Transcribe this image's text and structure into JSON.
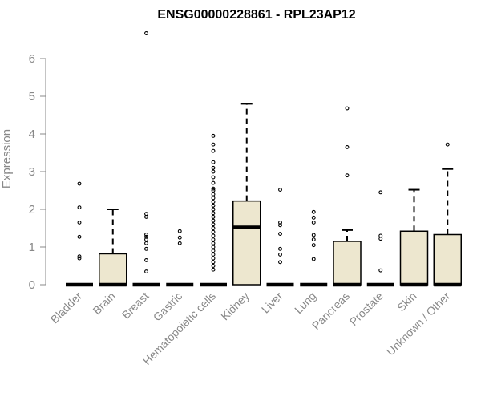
{
  "chart_data": {
    "type": "boxplot",
    "title": "ENSG00000228861 - RPL23AP12",
    "xlabel": "",
    "ylabel": "Expression",
    "ylim": [
      0,
      6.8
    ],
    "yticks": [
      0,
      1,
      2,
      3,
      4,
      5,
      6
    ],
    "grid": false,
    "legend": "none",
    "colors": {
      "box_fill": "#ede7cf",
      "box_stroke": "#000000",
      "axis": "#888888",
      "title": "#000000"
    },
    "categories": [
      "Bladder",
      "Brain",
      "Breast",
      "Gastric",
      "Hematopoietic cells",
      "Kidney",
      "Liver",
      "Lung",
      "Pancreas",
      "Prostate",
      "Skin",
      "Unknown / Other"
    ],
    "boxes": [
      {
        "q1": 0,
        "median": 0,
        "q3": 0,
        "whisker_low": 0,
        "whisker_high": 0,
        "outliers": [
          0.7,
          0.75,
          1.27,
          1.65,
          2.05,
          2.68
        ]
      },
      {
        "q1": 0,
        "median": 0,
        "q3": 0.82,
        "whisker_low": 0,
        "whisker_high": 2.0,
        "outliers": []
      },
      {
        "q1": 0,
        "median": 0,
        "q3": 0,
        "whisker_low": 0,
        "whisker_high": 0,
        "outliers": [
          0.35,
          0.65,
          0.95,
          1.1,
          1.2,
          1.27,
          1.33,
          1.8,
          1.88,
          6.67
        ]
      },
      {
        "q1": 0,
        "median": 0,
        "q3": 0,
        "whisker_low": 0,
        "whisker_high": 0,
        "outliers": [
          1.1,
          1.25,
          1.42
        ]
      },
      {
        "q1": 0,
        "median": 0,
        "q3": 0,
        "whisker_low": 0,
        "whisker_high": 0,
        "outliers": [
          0.4,
          0.5,
          0.6,
          0.7,
          0.8,
          0.9,
          1.0,
          1.1,
          1.2,
          1.3,
          1.4,
          1.5,
          1.6,
          1.7,
          1.8,
          1.9,
          2.0,
          2.1,
          2.2,
          2.3,
          2.4,
          2.5,
          2.55,
          2.7,
          2.85,
          3.0,
          3.1,
          3.25,
          3.55,
          3.72,
          3.95
        ]
      },
      {
        "q1": 0,
        "median": 1.52,
        "q3": 2.22,
        "whisker_low": 0,
        "whisker_high": 4.8,
        "outliers": []
      },
      {
        "q1": 0,
        "median": 0,
        "q3": 0,
        "whisker_low": 0,
        "whisker_high": 0,
        "outliers": [
          0.6,
          0.8,
          0.95,
          1.35,
          1.58,
          1.65,
          2.52
        ]
      },
      {
        "q1": 0,
        "median": 0,
        "q3": 0,
        "whisker_low": 0,
        "whisker_high": 0,
        "outliers": [
          0.68,
          1.05,
          1.2,
          1.32,
          1.65,
          1.78,
          1.93
        ]
      },
      {
        "q1": 0,
        "median": 0,
        "q3": 1.15,
        "whisker_low": 0,
        "whisker_high": 1.45,
        "outliers": [
          2.9,
          3.65,
          4.68
        ]
      },
      {
        "q1": 0,
        "median": 0,
        "q3": 0,
        "whisker_low": 0,
        "whisker_high": 0,
        "outliers": [
          0.38,
          1.22,
          1.3,
          2.45
        ]
      },
      {
        "q1": 0,
        "median": 0,
        "q3": 1.42,
        "whisker_low": 0,
        "whisker_high": 2.52,
        "outliers": []
      },
      {
        "q1": 0,
        "median": 0,
        "q3": 1.33,
        "whisker_low": 0,
        "whisker_high": 3.07,
        "outliers": [
          3.72
        ]
      }
    ]
  }
}
